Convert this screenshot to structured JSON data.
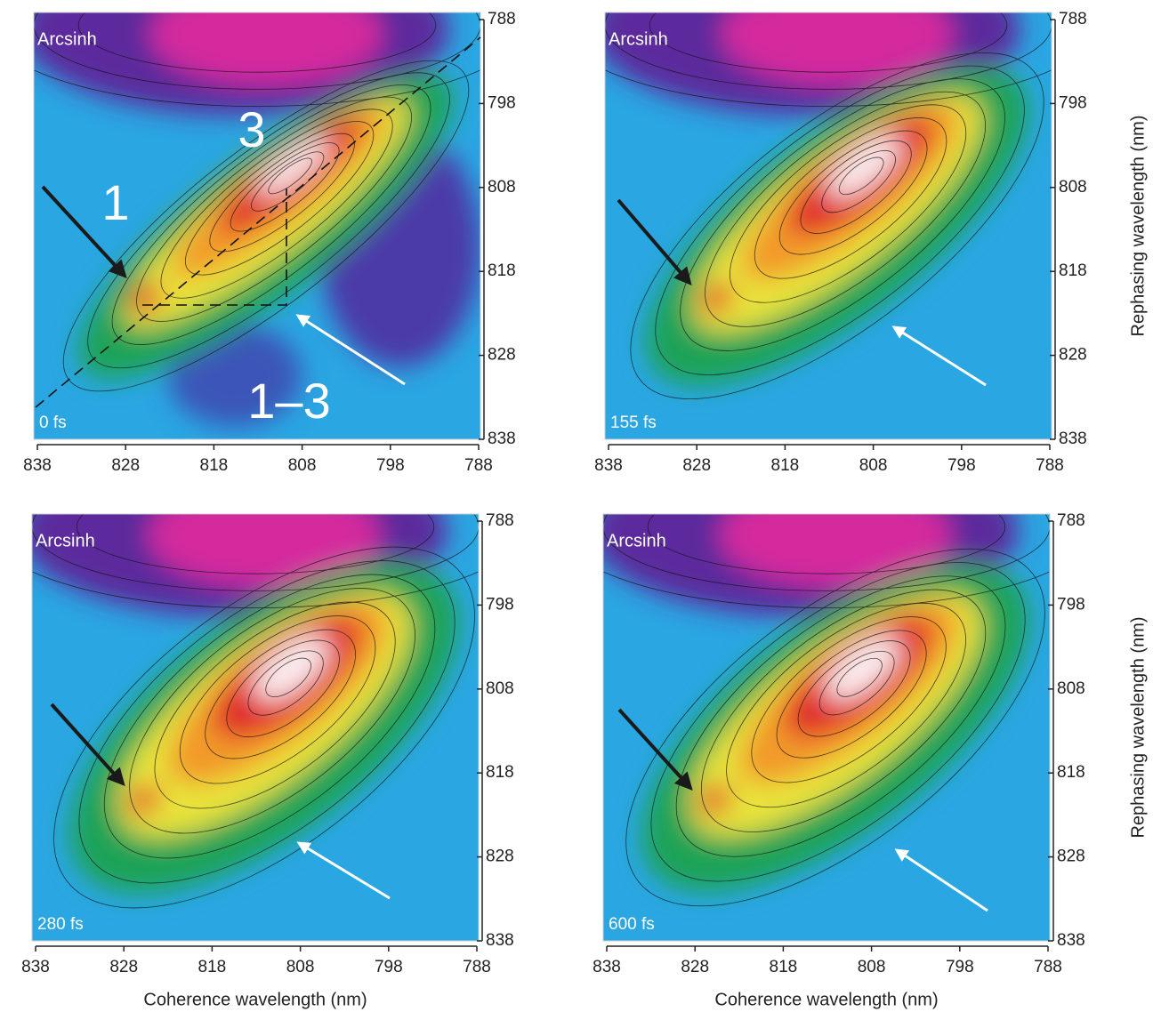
{
  "chart_data": [
    {
      "type": "contour",
      "label": "Arcsinh",
      "time": "0 fs",
      "xlim": [
        838,
        788
      ],
      "ylim": [
        838,
        788
      ],
      "xticks": [
        838,
        828,
        818,
        808,
        798,
        788
      ],
      "yticks": [
        788,
        798,
        808,
        818,
        828,
        838
      ],
      "annotations": [
        "1",
        "3",
        "1–3"
      ]
    },
    {
      "type": "contour",
      "label": "Arcsinh",
      "time": "155 fs",
      "xlim": [
        838,
        788
      ],
      "ylim": [
        838,
        788
      ],
      "xticks": [
        838,
        828,
        818,
        808,
        798,
        788
      ],
      "yticks": [
        788,
        798,
        808,
        818,
        828,
        838
      ],
      "ylabel": "Rephasing wavelength (nm)"
    },
    {
      "type": "contour",
      "label": "Arcsinh",
      "time": "280 fs",
      "xlim": [
        838,
        788
      ],
      "ylim": [
        838,
        788
      ],
      "xticks": [
        838,
        828,
        818,
        808,
        798,
        788
      ],
      "yticks": [
        788,
        798,
        808,
        818,
        828,
        838
      ],
      "xlabel": "Coherence wavelength (nm)"
    },
    {
      "type": "contour",
      "label": "Arcsinh",
      "time": "600 fs",
      "xlim": [
        838,
        788
      ],
      "ylim": [
        838,
        788
      ],
      "xticks": [
        838,
        828,
        818,
        808,
        798,
        788
      ],
      "yticks": [
        788,
        798,
        808,
        818,
        828,
        838
      ],
      "xlabel": "Coherence wavelength (nm)",
      "ylabel": "Rephasing wavelength (nm)"
    }
  ]
}
